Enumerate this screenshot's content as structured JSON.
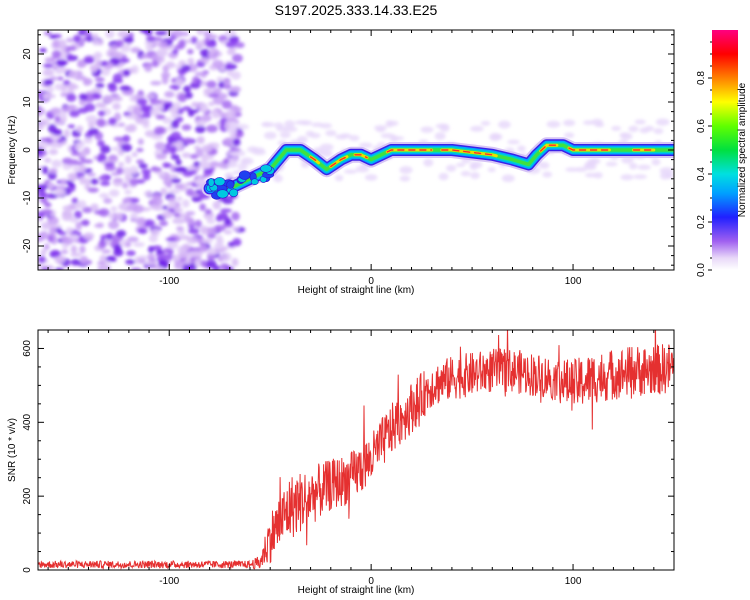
{
  "title": "S197.2025.333.14.33.E25",
  "chart_data": [
    {
      "type": "heatmap",
      "xlabel": "Height of straight line (km)",
      "ylabel": "Frequency (Hz)",
      "xlim": [
        -165,
        150
      ],
      "ylim": [
        -25,
        25
      ],
      "xticks": [
        -100,
        0,
        100
      ],
      "yticks": [
        -20,
        -10,
        0,
        10,
        20
      ],
      "colorbar": {
        "label": "Normalized spectral amplitude",
        "range": [
          0,
          1
        ],
        "ticks": [
          0.0,
          0.2,
          0.4,
          0.6,
          0.8
        ]
      },
      "noise_region_x": [
        -165,
        -65
      ],
      "ridge": {
        "x": [
          -80,
          -70,
          -60,
          -50,
          -42,
          -35,
          -28,
          -22,
          -15,
          -10,
          -5,
          0,
          5,
          10,
          20,
          40,
          60,
          70,
          78,
          82,
          87,
          95,
          100,
          120,
          140,
          150
        ],
        "y": [
          -8,
          -8,
          -6,
          -4,
          0,
          0,
          -2,
          -4,
          -2,
          -1,
          -1,
          -2,
          -1,
          0,
          0,
          0,
          -1,
          -2,
          -3,
          -1,
          1,
          1,
          0,
          0,
          0,
          0
        ]
      }
    },
    {
      "type": "line",
      "xlabel": "Height of straight line (km)",
      "ylabel": "SNR (10 * v/v)",
      "xlim": [
        -165,
        150
      ],
      "ylim": [
        0,
        650
      ],
      "xticks": [
        -100,
        0,
        100
      ],
      "yticks": [
        0,
        200,
        400,
        600
      ],
      "series": [
        {
          "name": "SNR",
          "color": "#e53030",
          "envelope_x": [
            -165,
            -60,
            -55,
            -50,
            -40,
            -30,
            -20,
            -10,
            0,
            10,
            20,
            30,
            40,
            50,
            60,
            70,
            80,
            90,
            100,
            110,
            120,
            130,
            140,
            150
          ],
          "envelope_mean": [
            15,
            15,
            20,
            90,
            170,
            200,
            230,
            250,
            300,
            380,
            440,
            500,
            520,
            530,
            540,
            540,
            530,
            520,
            500,
            520,
            530,
            540,
            540,
            550
          ],
          "envelope_spread": [
            10,
            10,
            20,
            70,
            90,
            80,
            70,
            70,
            70,
            70,
            70,
            60,
            60,
            60,
            60,
            60,
            60,
            60,
            70,
            70,
            70,
            70,
            70,
            70
          ]
        }
      ]
    }
  ]
}
